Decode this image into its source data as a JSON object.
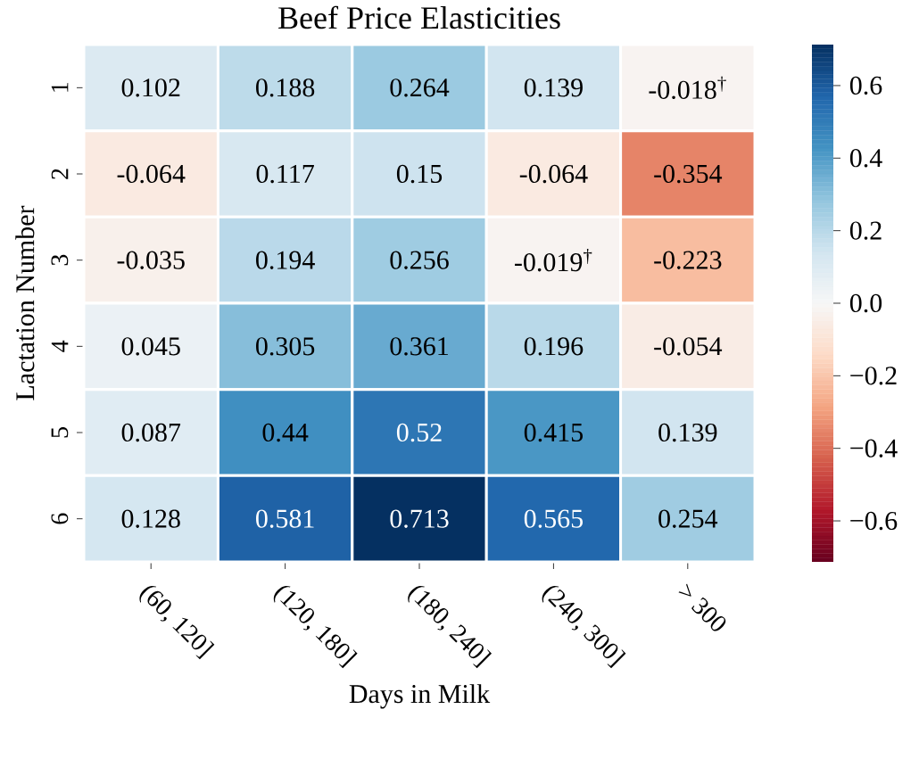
{
  "chart_data": {
    "type": "heatmap",
    "title": "Beef Price Elasticities",
    "xlabel": "Days in Milk",
    "ylabel": "Lactation Number",
    "categories": [
      "(60, 120]",
      "(120, 180]",
      "(180, 240]",
      "(240, 300]",
      "> 300"
    ],
    "y_categories": [
      "1",
      "2",
      "3",
      "4",
      "5",
      "6"
    ],
    "cells": [
      [
        0.102,
        0.188,
        0.264,
        0.139,
        -0.018
      ],
      [
        -0.064,
        0.117,
        0.15,
        -0.064,
        -0.354
      ],
      [
        -0.035,
        0.194,
        0.256,
        -0.019,
        -0.223
      ],
      [
        0.045,
        0.305,
        0.361,
        0.196,
        -0.054
      ],
      [
        0.087,
        0.44,
        0.52,
        0.415,
        0.139
      ],
      [
        0.128,
        0.581,
        0.713,
        0.565,
        0.254
      ]
    ],
    "cell_labels": [
      [
        "0.102",
        "0.188",
        "0.264",
        "0.139",
        "-0.018$^{†}$"
      ],
      [
        "-0.064",
        "0.117",
        "0.15",
        "-0.064",
        "-0.354"
      ],
      [
        "-0.035",
        "0.194",
        "0.256",
        "-0.019$^{†}$",
        "-0.223"
      ],
      [
        "0.045",
        "0.305",
        "0.361",
        "0.196",
        "-0.054"
      ],
      [
        "0.087",
        "0.44",
        "0.52",
        "0.415",
        "0.139"
      ],
      [
        "0.128",
        "0.581",
        "0.713",
        "0.565",
        "0.254"
      ]
    ],
    "clim": [
      -0.713,
      0.713
    ],
    "cticks": [
      {
        "value": -0.6,
        "label": "−0.6"
      },
      {
        "value": -0.4,
        "label": "−0.4"
      },
      {
        "value": -0.2,
        "label": "−0.2"
      },
      {
        "value": 0,
        "label": "0.0"
      },
      0.2,
      0.4,
      0.6
    ]
  }
}
